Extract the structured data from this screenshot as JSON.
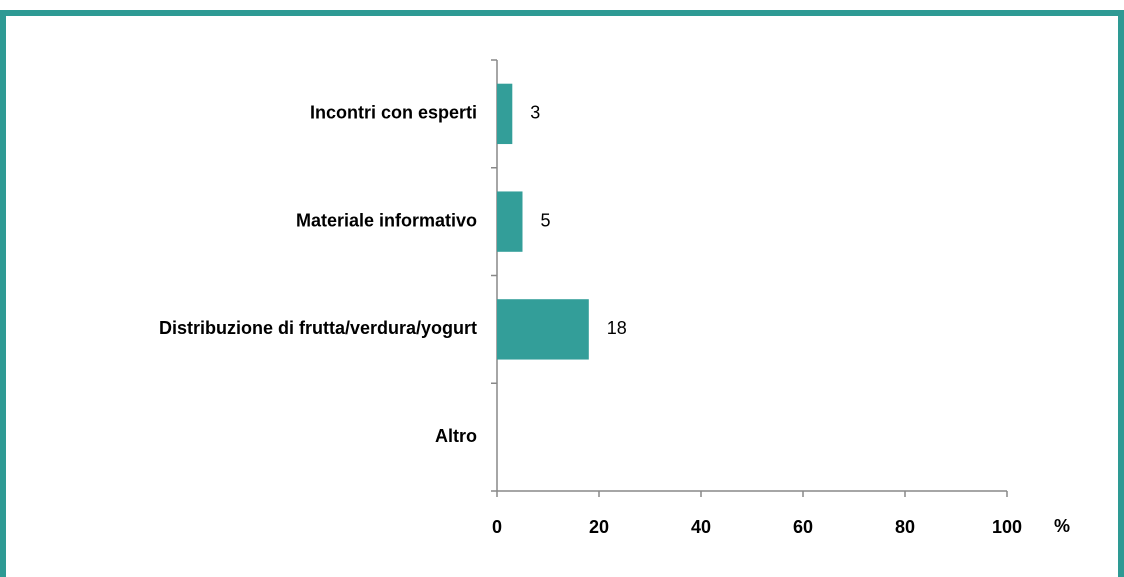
{
  "chart_data": {
    "type": "bar",
    "orientation": "horizontal",
    "categories": [
      "Incontri con esperti",
      "Materiale informativo",
      "Distribuzione di frutta/verdura/yogurt",
      "Altro"
    ],
    "values": [
      3,
      5,
      18,
      null
    ],
    "color": "#339e99",
    "xlim": [
      0,
      100
    ],
    "xticks": [
      0,
      20,
      40,
      60,
      80,
      100
    ],
    "x_label": "%",
    "data_labels": true
  }
}
